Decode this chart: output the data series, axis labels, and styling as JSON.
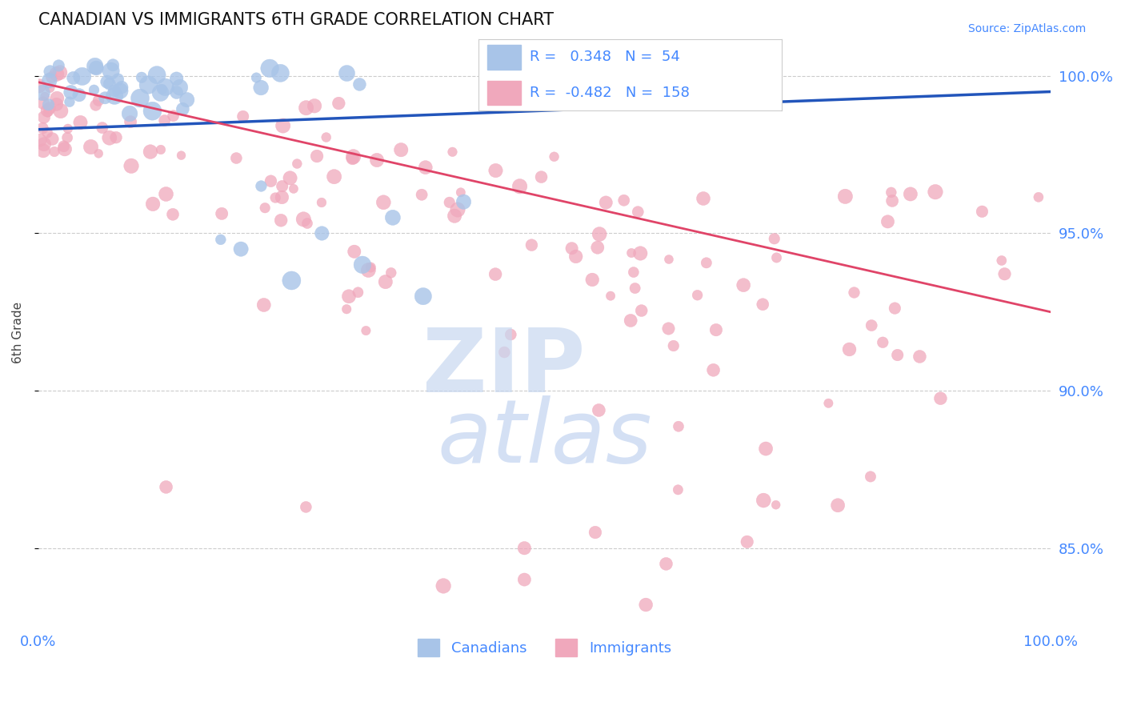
{
  "title": "CANADIAN VS IMMIGRANTS 6TH GRADE CORRELATION CHART",
  "source": "Source: ZipAtlas.com",
  "ylabel": "6th Grade",
  "xlim": [
    0.0,
    100.0
  ],
  "ylim": [
    82.5,
    101.2
  ],
  "right_yticks": [
    85.0,
    90.0,
    95.0,
    100.0
  ],
  "right_ytick_labels": [
    "85.0%",
    "90.0%",
    "95.0%",
    "100.0%"
  ],
  "legend_r_canadian": "0.348",
  "legend_n_canadian": "54",
  "legend_r_immigrant": "-0.482",
  "legend_n_immigrant": "158",
  "canadian_color": "#a8c4e8",
  "immigrant_color": "#f0a8bc",
  "canadian_line_color": "#2255bb",
  "immigrant_line_color": "#e04468",
  "watermark_zip_color": "#c8d8f0",
  "watermark_atlas_color": "#b8ccee",
  "background_color": "#ffffff",
  "grid_color": "#cccccc",
  "axis_color": "#4488ff",
  "legend_border_color": "#cccccc"
}
